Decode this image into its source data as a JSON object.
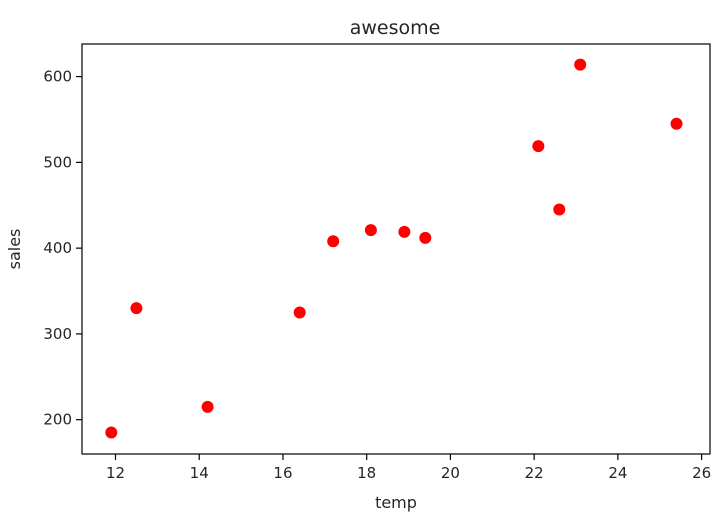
{
  "chart_data": {
    "type": "scatter",
    "title": "awesome",
    "xlabel": "temp",
    "ylabel": "sales",
    "xlim": [
      11.2,
      26.2
    ],
    "ylim": [
      160,
      638
    ],
    "xticks": [
      12,
      14,
      16,
      18,
      20,
      22,
      24,
      26
    ],
    "yticks": [
      200,
      300,
      400,
      500,
      600
    ],
    "grid": false,
    "legend": "none",
    "marker_color": "#ff0000",
    "points": [
      {
        "x": 11.9,
        "y": 185
      },
      {
        "x": 12.5,
        "y": 330
      },
      {
        "x": 14.2,
        "y": 215
      },
      {
        "x": 16.4,
        "y": 325
      },
      {
        "x": 17.2,
        "y": 408
      },
      {
        "x": 18.1,
        "y": 421
      },
      {
        "x": 18.9,
        "y": 419
      },
      {
        "x": 19.4,
        "y": 412
      },
      {
        "x": 22.1,
        "y": 519
      },
      {
        "x": 22.6,
        "y": 445
      },
      {
        "x": 23.1,
        "y": 614
      },
      {
        "x": 25.4,
        "y": 545
      }
    ]
  }
}
